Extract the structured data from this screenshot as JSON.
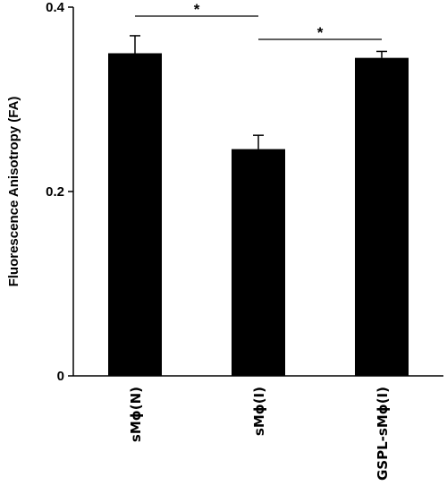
{
  "chart_data": {
    "type": "bar",
    "title": "",
    "xlabel": "",
    "ylabel": "Fluorescence Anisotropy (FA)",
    "ylim": [
      0,
      0.4
    ],
    "yticks": [
      {
        "value": 0,
        "label": "0"
      },
      {
        "value": 0.2,
        "label": "0.2"
      },
      {
        "value": 0.4,
        "label": "0.4"
      }
    ],
    "categories": [
      "sMϕ(N)",
      "sMϕ(I)",
      "GSPL-sMϕ(I)"
    ],
    "values": [
      0.35,
      0.246,
      0.345
    ],
    "errors": [
      0.019,
      0.015,
      0.007
    ],
    "bar_color": "#000000",
    "grid": false,
    "significance": [
      {
        "from": 0,
        "to": 1,
        "label": "*"
      },
      {
        "from": 1,
        "to": 2,
        "label": "*"
      }
    ]
  }
}
